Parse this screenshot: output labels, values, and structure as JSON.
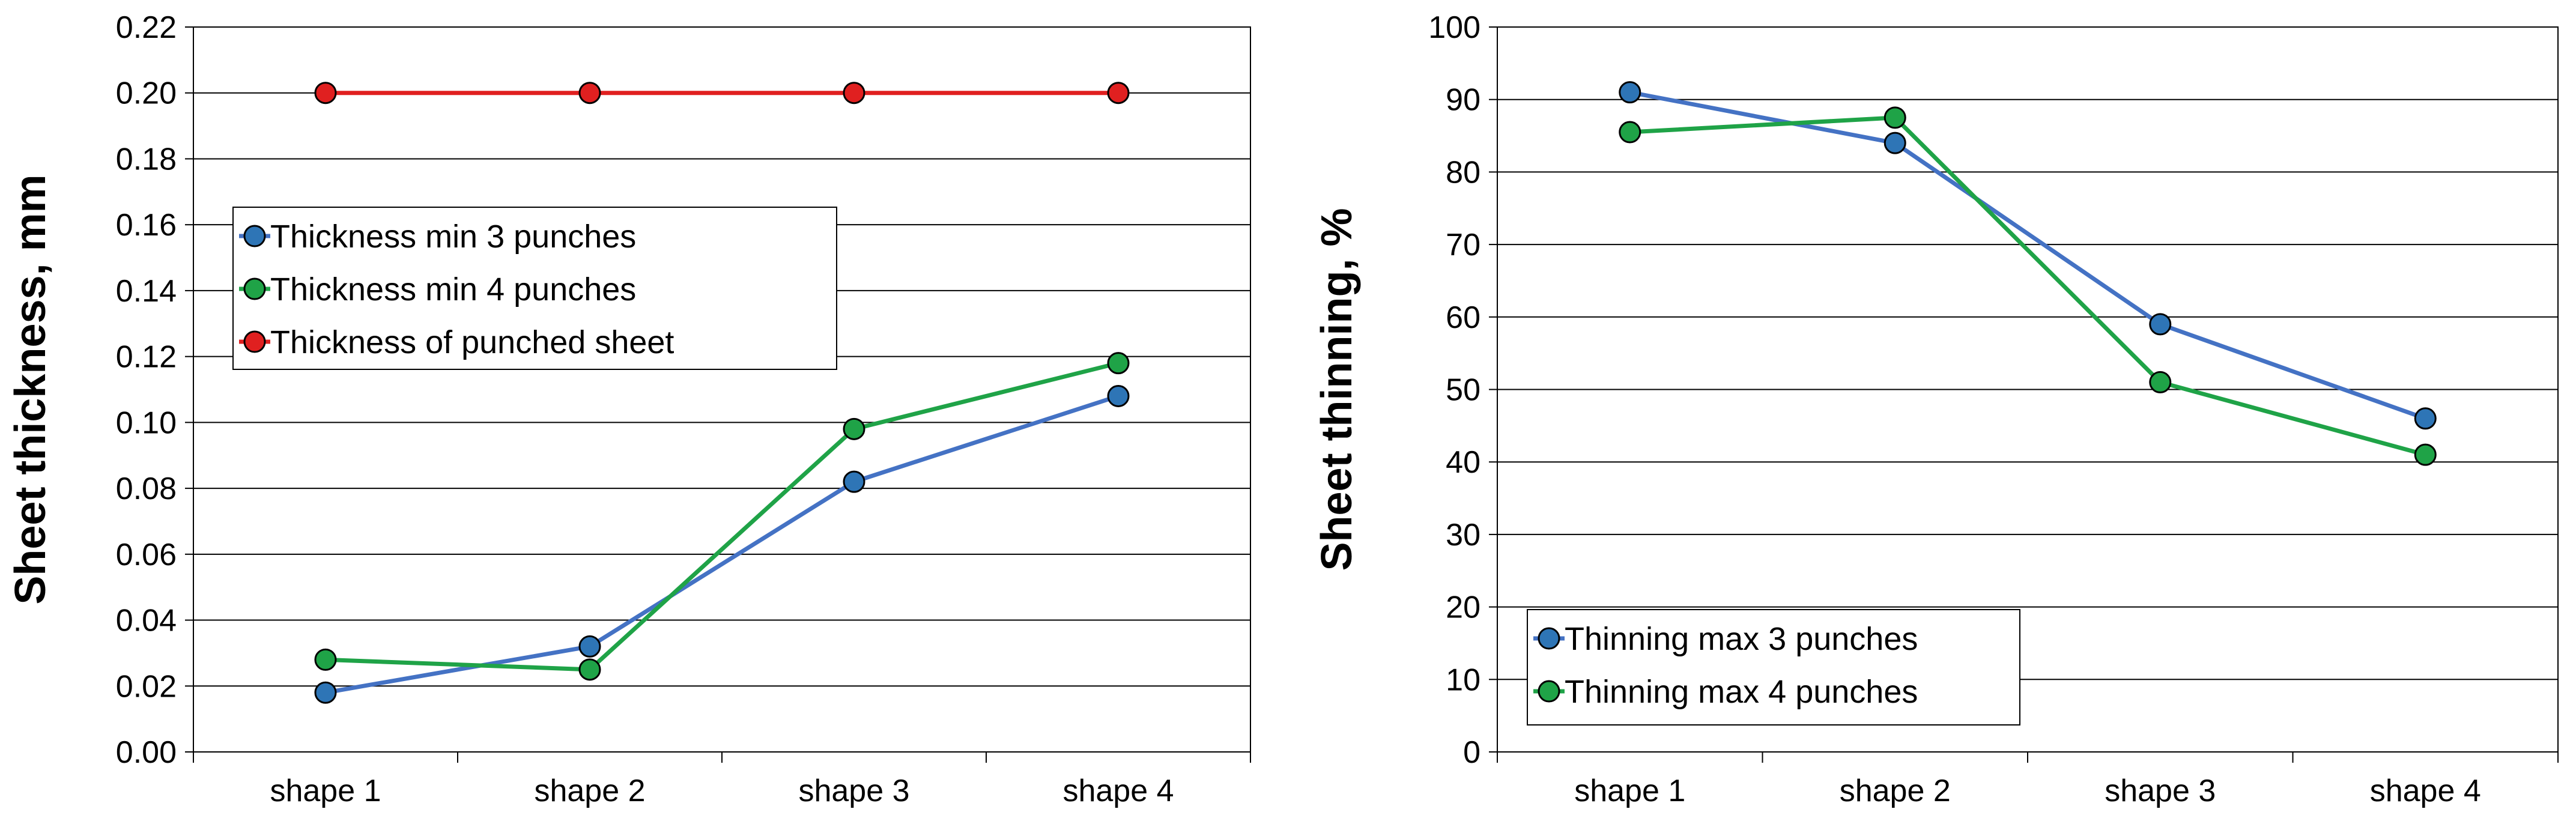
{
  "chart_data": [
    {
      "type": "line",
      "title": "",
      "xlabel": "",
      "ylabel": "Sheet thickness, mm",
      "ylim": [
        0,
        0.22
      ],
      "ystep": 0.02,
      "ytick_decimals": 2,
      "grid": true,
      "legend_position": "middle-left",
      "categories": [
        "shape 1",
        "shape 2",
        "shape 3",
        "shape 4"
      ],
      "series": [
        {
          "name": "Thickness min 3 punches",
          "color": "#4472C4",
          "marker": "#2E75B6",
          "values": [
            0.018,
            0.032,
            0.082,
            0.108
          ]
        },
        {
          "name": "Thickness min 4 punches",
          "color": "#1FA347",
          "marker": "#1FA347",
          "values": [
            0.028,
            0.025,
            0.098,
            0.118
          ]
        },
        {
          "name": "Thickness of punched sheet",
          "color": "#E02020",
          "marker": "#E02020",
          "values": [
            0.2,
            0.2,
            0.2,
            0.2
          ]
        }
      ]
    },
    {
      "type": "line",
      "title": "",
      "xlabel": "",
      "ylabel": "Sheet thinning, %",
      "ylim": [
        0,
        100
      ],
      "ystep": 10,
      "ytick_decimals": 0,
      "grid": true,
      "legend_position": "bottom-left",
      "categories": [
        "shape 1",
        "shape 2",
        "shape 3",
        "shape 4"
      ],
      "series": [
        {
          "name": "Thinning max 3 punches",
          "color": "#4472C4",
          "marker": "#2E75B6",
          "values": [
            91,
            84,
            59,
            46
          ]
        },
        {
          "name": "Thinning max 4 punches",
          "color": "#1FA347",
          "marker": "#1FA347",
          "values": [
            85.5,
            87.5,
            51,
            41
          ]
        }
      ]
    }
  ]
}
